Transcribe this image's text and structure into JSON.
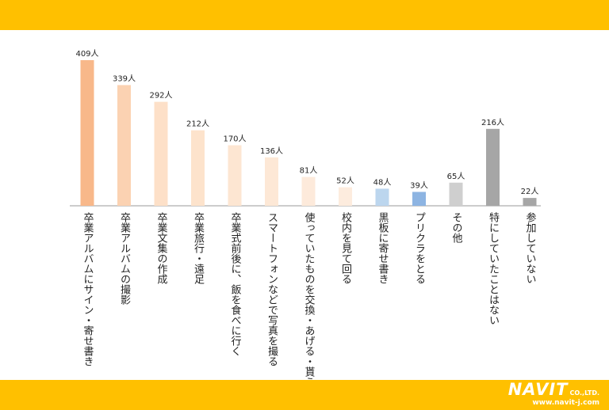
{
  "brand": {
    "name": "NAVIT",
    "suffix": "CO.,LTD.",
    "url": "www.navit-j.com"
  },
  "chart_data": {
    "type": "bar",
    "title": "",
    "xlabel": "",
    "ylabel": "",
    "ylim": [
      0,
      420
    ],
    "grid": false,
    "legend": "none",
    "unit": "人",
    "categories": [
      "卒業アルバムにサイン・寄せ書き",
      "卒業アルバムの撮影",
      "卒業文集の作成",
      "卒業旅行・遠足",
      "卒業式前後に、飯を食べに行く",
      "スマートフォンなどで写真を撮る",
      "使っていたものを交換・あげる・貰う",
      "校内を見て回る",
      "黒板に寄せ書き",
      "プリクラをとる",
      "その他",
      "特にしていたことはない",
      "参加していない"
    ],
    "values": [
      409,
      339,
      292,
      212,
      170,
      136,
      81,
      52,
      48,
      39,
      65,
      216,
      22
    ],
    "data_labels": [
      "409人",
      "339人",
      "292人",
      "212人",
      "170人",
      "136人",
      "81人",
      "52人",
      "48人",
      "39人",
      "65人",
      "216人",
      "22人"
    ],
    "colors": [
      "#f8b88a",
      "#fbd2b2",
      "#fde0c8",
      "#fde3cc",
      "#fde6d2",
      "#fde8d6",
      "#fdeadb",
      "#fdecde",
      "#bcd6ee",
      "#8db4e2",
      "#cfcfcf",
      "#a6a6a6",
      "#a6a6a6"
    ]
  }
}
